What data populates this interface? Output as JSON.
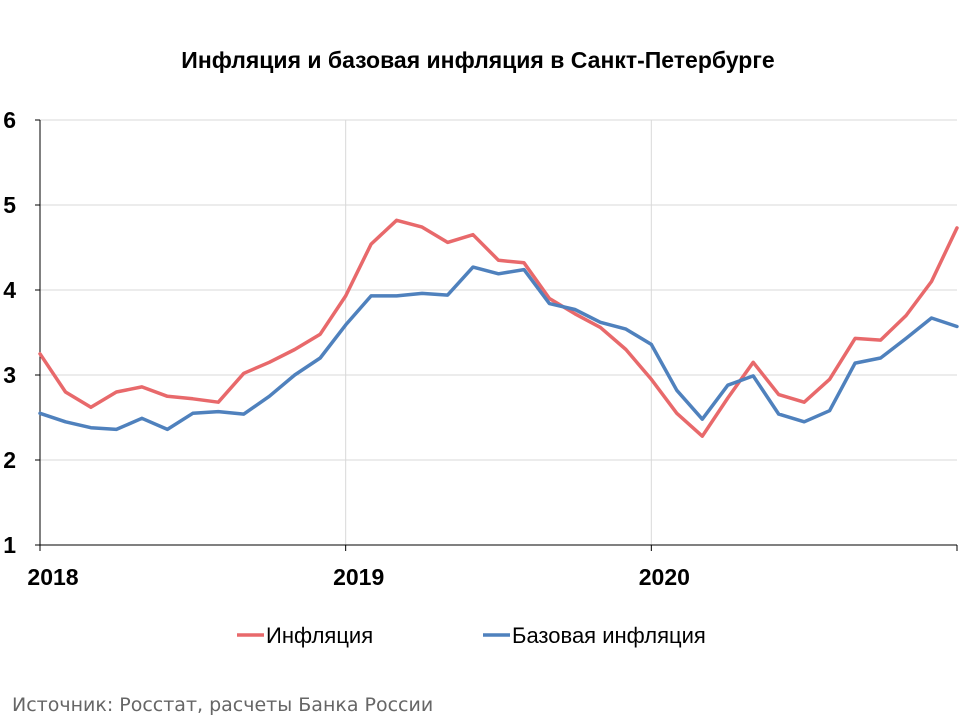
{
  "chart_data": {
    "type": "line",
    "title": "Инфляция и базовая инфляция в Санкт-Петербурге",
    "source": "Источник: Росстат, расчеты Банка России",
    "x_tick_labels": [
      "2018",
      "2019",
      "2020"
    ],
    "y_tick_labels": [
      "1",
      "2",
      "3",
      "4",
      "5",
      "6"
    ],
    "ylim": [
      1,
      6
    ],
    "x_range": [
      0,
      36
    ],
    "x_tick_positions": [
      0,
      12,
      24,
      36
    ],
    "grid": "vertical-at-years-and-horizontal",
    "legend_position": "bottom",
    "colors": {
      "inflation": "#e8696b",
      "core": "#4f81bd",
      "grid": "#d9d9d9",
      "axis": "#000000"
    },
    "series": [
      {
        "name": "Инфляция",
        "color": "#e8696b",
        "values": [
          3.25,
          2.8,
          2.62,
          2.8,
          2.86,
          2.75,
          2.72,
          2.68,
          3.02,
          3.15,
          3.3,
          3.48,
          3.93,
          4.54,
          4.82,
          4.74,
          4.56,
          4.65,
          4.35,
          4.32,
          3.9,
          3.72,
          3.56,
          3.3,
          2.95,
          2.55,
          2.28,
          2.73,
          3.15,
          2.77,
          2.68,
          2.95,
          3.43,
          3.41,
          3.7,
          4.1,
          4.73
        ]
      },
      {
        "name": "Базовая инфляция",
        "color": "#4f81bd",
        "values": [
          2.55,
          2.45,
          2.38,
          2.36,
          2.49,
          2.36,
          2.55,
          2.57,
          2.54,
          2.75,
          3.0,
          3.2,
          3.59,
          3.93,
          3.93,
          3.96,
          3.94,
          4.27,
          4.19,
          4.24,
          3.84,
          3.77,
          3.62,
          3.54,
          3.36,
          2.82,
          2.48,
          2.88,
          2.99,
          2.54,
          2.45,
          2.58,
          3.14,
          3.2,
          3.43,
          3.67,
          3.57
        ]
      }
    ]
  }
}
